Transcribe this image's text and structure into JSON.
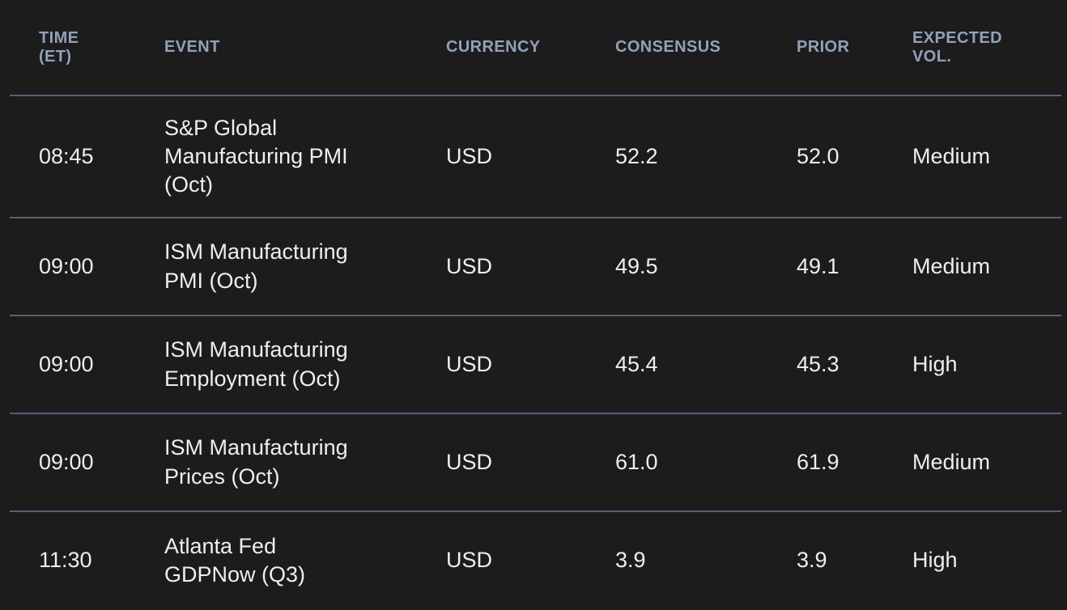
{
  "table": {
    "title": "economic-calendar",
    "columns": {
      "time": "TIME (ET)",
      "event": "EVENT",
      "currency": "CURRENCY",
      "consensus": "CONSENSUS",
      "prior": "PRIOR",
      "expected_vol": "EXPECTED VOL."
    },
    "rows": [
      {
        "time": "08:45",
        "event": "S&P Global Manufacturing PMI (Oct)",
        "currency": "USD",
        "consensus": "52.2",
        "prior": "52.0",
        "expected_vol": "Medium"
      },
      {
        "time": "09:00",
        "event": "ISM Manufacturing PMI (Oct)",
        "currency": "USD",
        "consensus": "49.5",
        "prior": "49.1",
        "expected_vol": "Medium"
      },
      {
        "time": "09:00",
        "event": "ISM Manufacturing Employment (Oct)",
        "currency": "USD",
        "consensus": "45.4",
        "prior": "45.3",
        "expected_vol": "High"
      },
      {
        "time": "09:00",
        "event": "ISM Manufacturing Prices (Oct)",
        "currency": "USD",
        "consensus": "61.0",
        "prior": "61.9",
        "expected_vol": "Medium"
      },
      {
        "time": "11:30",
        "event": "Atlanta Fed GDPNow (Q3)",
        "currency": "USD",
        "consensus": "3.9",
        "prior": "3.9",
        "expected_vol": "High"
      }
    ]
  },
  "colors": {
    "background": "#1c1c1d",
    "header_text": "#92a1b8",
    "body_text": "#edeef0",
    "divider": "#576073"
  }
}
